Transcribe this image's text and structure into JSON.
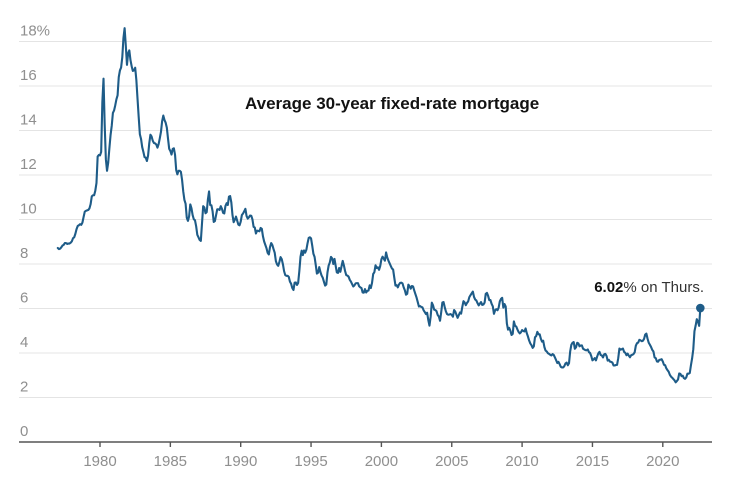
{
  "chart_data": {
    "type": "line",
    "title": "Average 30-year fixed-rate mortgage",
    "xlabel": "",
    "ylabel": "",
    "ylim": [
      0,
      18
    ],
    "xlim": [
      1977.0,
      2022.67
    ],
    "grid": true,
    "legend": "none",
    "x_start_year": 1977,
    "points_per_year": 12,
    "x_ticks": [
      {
        "year": 1980,
        "label": "1980"
      },
      {
        "year": 1985,
        "label": "1985"
      },
      {
        "year": 1990,
        "label": "1990"
      },
      {
        "year": 1995,
        "label": "1995"
      },
      {
        "year": 2000,
        "label": "2000"
      },
      {
        "year": 2005,
        "label": "2005"
      },
      {
        "year": 2010,
        "label": "2010"
      },
      {
        "year": 2015,
        "label": "2015"
      },
      {
        "year": 2020,
        "label": "2020"
      }
    ],
    "y_ticks": [
      {
        "value": 0,
        "label": "0"
      },
      {
        "value": 2,
        "label": "2"
      },
      {
        "value": 4,
        "label": "4"
      },
      {
        "value": 6,
        "label": "6"
      },
      {
        "value": 8,
        "label": "8"
      },
      {
        "value": 10,
        "label": "10"
      },
      {
        "value": 12,
        "label": "12"
      },
      {
        "value": 14,
        "label": "14"
      },
      {
        "value": 16,
        "label": "16"
      },
      {
        "value": 18,
        "label": "18%"
      }
    ],
    "annotation": {
      "bold": "6.02",
      "regular": "% on Thurs."
    },
    "latest_value": 6.02,
    "colors": {
      "line": "#1e5c88",
      "dot": "#1e5c88",
      "grid": "#e4e4e4",
      "axis": "#555555",
      "tick_label": "#8f8f8f",
      "title": "#121212",
      "annotation_regular": "#333333",
      "background": "#ffffff"
    },
    "values": [
      8.72,
      8.67,
      8.69,
      8.75,
      8.83,
      8.86,
      8.94,
      8.94,
      8.9,
      8.92,
      8.92,
      8.96,
      9.02,
      9.16,
      9.2,
      9.36,
      9.57,
      9.71,
      9.74,
      9.79,
      9.76,
      9.86,
      10.11,
      10.35,
      10.39,
      10.41,
      10.43,
      10.5,
      10.69,
      11.04,
      11.09,
      11.09,
      11.3,
      11.64,
      12.83,
      12.9,
      12.88,
      13.04,
      15.28,
      16.33,
      14.26,
      12.71,
      12.19,
      12.56,
      13.2,
      13.79,
      14.21,
      14.79,
      14.9,
      15.13,
      15.4,
      15.58,
      16.4,
      16.7,
      16.83,
      17.29,
      18.16,
      18.6,
      17.82,
      16.95,
      17.48,
      17.6,
      17.16,
      16.89,
      16.68,
      16.7,
      16.82,
      16.27,
      15.43,
      14.61,
      13.83,
      13.62,
      13.25,
      13.04,
      12.8,
      12.78,
      12.63,
      12.87,
      13.42,
      13.81,
      13.73,
      13.54,
      13.44,
      13.42,
      13.37,
      13.23,
      13.39,
      13.65,
      13.94,
      14.42,
      14.67,
      14.47,
      14.35,
      14.13,
      13.64,
      13.18,
      13.08,
      12.92,
      13.17,
      13.2,
      12.91,
      12.22,
      12.03,
      12.19,
      12.19,
      12.14,
      11.78,
      11.26,
      10.88,
      10.71,
      10.08,
      9.94,
      10.14,
      10.68,
      10.51,
      10.2,
      10.01,
      9.97,
      9.7,
      9.31,
      9.2,
      9.08,
      9.04,
      9.83,
      10.6,
      10.54,
      10.28,
      10.33,
      10.89,
      11.26,
      10.65,
      10.64,
      10.38,
      9.89,
      9.93,
      10.2,
      10.46,
      10.46,
      10.43,
      10.6,
      10.48,
      10.3,
      10.27,
      10.61,
      10.73,
      10.65,
      11.03,
      11.05,
      10.77,
      10.2,
      9.88,
      9.99,
      10.13,
      9.95,
      9.77,
      9.74,
      9.9,
      10.2,
      10.27,
      10.37,
      10.48,
      10.16,
      10.04,
      10.1,
      10.18,
      10.17,
      10.01,
      9.67,
      9.64,
      9.37,
      9.5,
      9.49,
      9.47,
      9.62,
      9.58,
      9.24,
      9.01,
      8.86,
      8.71,
      8.5,
      8.43,
      8.76,
      8.94,
      8.85,
      8.67,
      8.51,
      8.13,
      7.98,
      7.92,
      8.09,
      8.31,
      8.22,
      7.99,
      7.68,
      7.5,
      7.47,
      7.47,
      7.42,
      7.21,
      7.11,
      6.92,
      6.83,
      7.16,
      7.17,
      7.06,
      7.15,
      7.68,
      8.32,
      8.6,
      8.4,
      8.61,
      8.51,
      8.64,
      8.93,
      9.17,
      9.2,
      9.15,
      8.83,
      8.46,
      8.32,
      7.96,
      7.57,
      7.61,
      7.86,
      7.64,
      7.48,
      7.38,
      7.2,
      7.03,
      7.08,
      7.62,
      7.93,
      8.07,
      8.32,
      8.25,
      8.0,
      8.23,
      7.92,
      7.62,
      7.6,
      7.82,
      7.65,
      7.9,
      8.14,
      7.94,
      7.69,
      7.5,
      7.48,
      7.43,
      7.29,
      7.21,
      7.1,
      6.99,
      7.04,
      7.13,
      7.14,
      7.14,
      7.0,
      6.95,
      6.92,
      6.72,
      6.71,
      6.87,
      6.72,
      6.79,
      6.81,
      7.04,
      6.92,
      7.15,
      7.55,
      7.63,
      7.94,
      7.82,
      7.85,
      7.74,
      7.91,
      8.21,
      8.33,
      8.24,
      8.15,
      8.52,
      8.29,
      8.15,
      8.03,
      7.91,
      7.8,
      7.75,
      7.38,
      7.03,
      7.05,
      6.95,
      7.08,
      7.15,
      7.16,
      7.13,
      6.95,
      6.82,
      6.62,
      6.66,
      7.07,
      7.0,
      6.89,
      7.01,
      6.99,
      6.81,
      6.65,
      6.49,
      6.29,
      6.09,
      6.11,
      6.07,
      6.05,
      5.92,
      5.84,
      5.75,
      5.81,
      5.48,
      5.23,
      5.63,
      6.26,
      6.15,
      5.95,
      5.93,
      5.88,
      5.71,
      5.64,
      5.45,
      5.83,
      6.27,
      6.29,
      6.06,
      5.87,
      5.75,
      5.72,
      5.73,
      5.75,
      5.71,
      5.63,
      5.93,
      5.86,
      5.72,
      5.58,
      5.7,
      5.82,
      5.77,
      6.07,
      6.33,
      6.27,
      6.15,
      6.25,
      6.32,
      6.51,
      6.6,
      6.68,
      6.76,
      6.52,
      6.4,
      6.36,
      6.24,
      6.14,
      6.22,
      6.29,
      6.16,
      6.18,
      6.26,
      6.66,
      6.7,
      6.57,
      6.38,
      6.38,
      6.21,
      6.1,
      5.76,
      5.92,
      5.97,
      5.92,
      6.04,
      6.32,
      6.43,
      6.48,
      6.04,
      6.2,
      6.09,
      5.33,
      5.05,
      5.13,
      5.0,
      4.81,
      4.86,
      5.42,
      5.22,
      5.19,
      5.06,
      4.95,
      4.88,
      4.93,
      5.03,
      4.99,
      4.97,
      5.1,
      4.89,
      4.74,
      4.56,
      4.43,
      4.35,
      4.23,
      4.3,
      4.71,
      4.76,
      4.95,
      4.84,
      4.84,
      4.64,
      4.51,
      4.55,
      4.27,
      4.11,
      4.07,
      3.99,
      3.96,
      3.92,
      3.89,
      3.95,
      3.91,
      3.8,
      3.68,
      3.55,
      3.6,
      3.5,
      3.38,
      3.35,
      3.35,
      3.41,
      3.53,
      3.57,
      3.45,
      3.54,
      4.07,
      4.37,
      4.46,
      4.49,
      4.19,
      4.26,
      4.46,
      4.43,
      4.3,
      4.34,
      4.34,
      4.19,
      4.16,
      4.13,
      4.12,
      4.16,
      4.04,
      4.0,
      3.86,
      3.67,
      3.71,
      3.77,
      3.67,
      3.84,
      3.98,
      4.05,
      3.91,
      3.89,
      3.8,
      3.94,
      3.96,
      3.87,
      3.66,
      3.69,
      3.61,
      3.6,
      3.57,
      3.44,
      3.44,
      3.46,
      3.47,
      3.77,
      4.2,
      4.15,
      4.17,
      4.2,
      4.05,
      4.01,
      3.9,
      3.97,
      3.88,
      3.81,
      3.9,
      3.92,
      3.95,
      4.03,
      4.33,
      4.44,
      4.47,
      4.59,
      4.57,
      4.53,
      4.55,
      4.63,
      4.83,
      4.87,
      4.64,
      4.46,
      4.37,
      4.27,
      4.14,
      4.07,
      3.8,
      3.77,
      3.62,
      3.61,
      3.69,
      3.7,
      3.72,
      3.62,
      3.47,
      3.45,
      3.31,
      3.23,
      3.16,
      3.02,
      2.94,
      2.89,
      2.83,
      2.77,
      2.68,
      2.74,
      2.81,
      3.08,
      3.06,
      2.96,
      2.98,
      2.87,
      2.84,
      2.9,
      3.07,
      3.07,
      3.1,
      3.45,
      3.76,
      4.17,
      4.98,
      5.23,
      5.52,
      5.41,
      5.22,
      6.02
    ]
  }
}
